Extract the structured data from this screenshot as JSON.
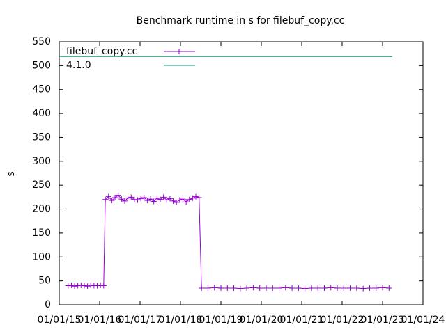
{
  "chart_data": {
    "type": "line",
    "title": "Benchmark runtime in s for filebuf_copy.cc",
    "ylabel": "s",
    "xlim": [
      2015,
      2024
    ],
    "xticks": [
      {
        "value": 2015,
        "label": "01/01/15"
      },
      {
        "value": 2016,
        "label": "01/01/16"
      },
      {
        "value": 2017,
        "label": "01/01/17"
      },
      {
        "value": 2018,
        "label": "01/01/18"
      },
      {
        "value": 2019,
        "label": "01/01/19"
      },
      {
        "value": 2020,
        "label": "01/01/20"
      },
      {
        "value": 2021,
        "label": "01/01/21"
      },
      {
        "value": 2022,
        "label": "01/01/22"
      },
      {
        "value": 2023,
        "label": "01/01/23"
      },
      {
        "value": 2024,
        "label": "01/01/24"
      }
    ],
    "ylim": [
      0,
      550
    ],
    "yticks": [
      0,
      50,
      100,
      150,
      200,
      250,
      300,
      350,
      400,
      450,
      500,
      550
    ],
    "legend": "top-left",
    "series": [
      {
        "name": "filebuf_copy.cc",
        "color": "#9400d3",
        "marker": "+",
        "x": [
          2015.22,
          2015.3,
          2015.38,
          2015.46,
          2015.54,
          2015.62,
          2015.7,
          2015.78,
          2015.86,
          2015.94,
          2016.02,
          2016.1,
          2016.14,
          2016.22,
          2016.3,
          2016.38,
          2016.46,
          2016.54,
          2016.62,
          2016.7,
          2016.78,
          2016.86,
          2016.94,
          2017.02,
          2017.1,
          2017.18,
          2017.26,
          2017.34,
          2017.42,
          2017.5,
          2017.58,
          2017.66,
          2017.74,
          2017.82,
          2017.9,
          2017.98,
          2018.06,
          2018.14,
          2018.22,
          2018.3,
          2018.38,
          2018.46,
          2018.52,
          2018.68,
          2018.84,
          2019.0,
          2019.16,
          2019.32,
          2019.48,
          2019.64,
          2019.8,
          2019.96,
          2020.12,
          2020.28,
          2020.44,
          2020.6,
          2020.76,
          2020.92,
          2021.08,
          2021.24,
          2021.4,
          2021.56,
          2021.72,
          2021.88,
          2022.04,
          2022.2,
          2022.36,
          2022.52,
          2022.68,
          2022.84,
          2023.0,
          2023.16
        ],
        "values": [
          40,
          41,
          39,
          40,
          41,
          40,
          39,
          41,
          40,
          40,
          41,
          40,
          220,
          226,
          218,
          224,
          229,
          221,
          217,
          223,
          225,
          220,
          219,
          222,
          224,
          218,
          221,
          216,
          223,
          220,
          225,
          219,
          222,
          217,
          214,
          219,
          221,
          215,
          220,
          223,
          226,
          224,
          35,
          35,
          36,
          35,
          35,
          35,
          34,
          35,
          36,
          35,
          35,
          35,
          35,
          36,
          35,
          35,
          34,
          35,
          35,
          35,
          36,
          35,
          35,
          35,
          35,
          34,
          35,
          35,
          36,
          35
        ]
      },
      {
        "name": "4.1.0",
        "color": "#009e73",
        "x": [
          2015,
          2023.24
        ],
        "values": [
          519,
          519
        ]
      }
    ]
  }
}
